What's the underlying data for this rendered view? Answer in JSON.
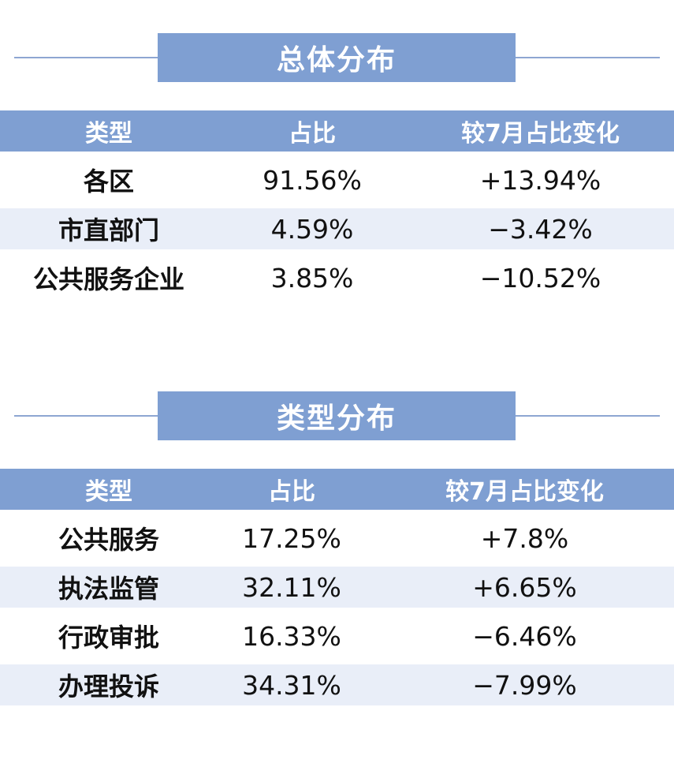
{
  "overall": {
    "title": "总体分布",
    "headers": [
      "类型",
      "占比",
      "较7月占比变化"
    ],
    "rows": [
      {
        "type": "各区",
        "share": "91.56%",
        "change": "+13.94%"
      },
      {
        "type": "市直部门",
        "share": "4.59%",
        "change": "−3.42%"
      },
      {
        "type": "公共服务企业",
        "share": "3.85%",
        "change": "−10.52%"
      }
    ]
  },
  "category": {
    "title": "类型分布",
    "headers": [
      "类型",
      "占比",
      "较7月占比变化"
    ],
    "rows": [
      {
        "type": "公共服务",
        "share": "17.25%",
        "change": "+7.8%"
      },
      {
        "type": "执法监管",
        "share": "32.11%",
        "change": "+6.65%"
      },
      {
        "type": "行政审批",
        "share": "16.33%",
        "change": "−6.46%"
      },
      {
        "type": "办理投诉",
        "share": "34.31%",
        "change": "−7.99%"
      }
    ]
  },
  "colors": {
    "accent": "#7f9fd2",
    "row_alt": "#e9eef8",
    "rule": "#8ea6d2"
  }
}
